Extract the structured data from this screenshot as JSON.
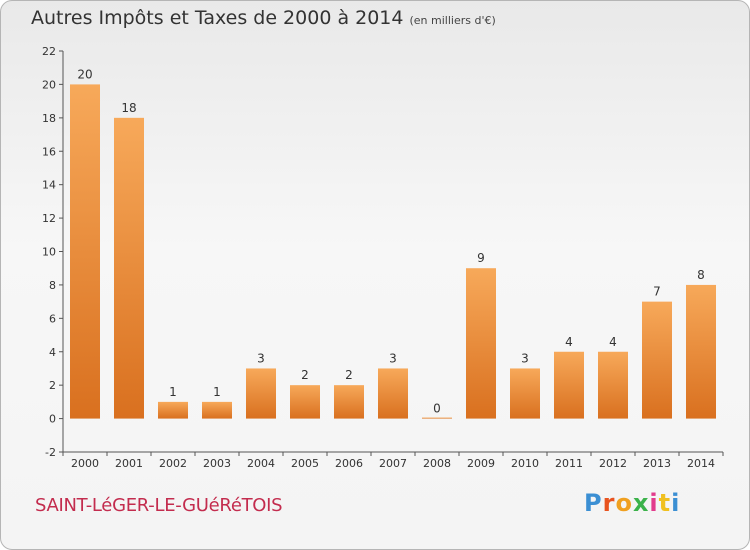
{
  "title": "Autres Impôts et Taxes de 2000 à 2014",
  "subtitle": "(en milliers d'€)",
  "commune": "SAINT-LéGER-LE-GUéRéTOIS",
  "logo": {
    "text": "Proxiti",
    "colors": [
      "#3b8fd3",
      "#e8531f",
      "#f0a020",
      "#3bb24a",
      "#e23b8c",
      "#f0c020",
      "#3b8fd3"
    ]
  },
  "colors": {
    "bar_light": "#f7a95a",
    "bar_dark": "#d9701f",
    "axis": "#555555",
    "grid": "#cccccc"
  },
  "chart_data": {
    "type": "bar",
    "categories": [
      "2000",
      "2001",
      "2002",
      "2003",
      "2004",
      "2005",
      "2006",
      "2007",
      "2008",
      "2009",
      "2010",
      "2011",
      "2012",
      "2013",
      "2014"
    ],
    "values": [
      20,
      18,
      1,
      1,
      3,
      2,
      2,
      3,
      0,
      9,
      3,
      4,
      4,
      7,
      8
    ],
    "ylim": [
      -2,
      22
    ],
    "yticks": [
      -2,
      0,
      2,
      4,
      6,
      8,
      10,
      12,
      14,
      16,
      18,
      20,
      22
    ],
    "title": "Autres Impôts et Taxes de 2000 à 2014",
    "xlabel": "",
    "ylabel": "",
    "grid": false
  }
}
